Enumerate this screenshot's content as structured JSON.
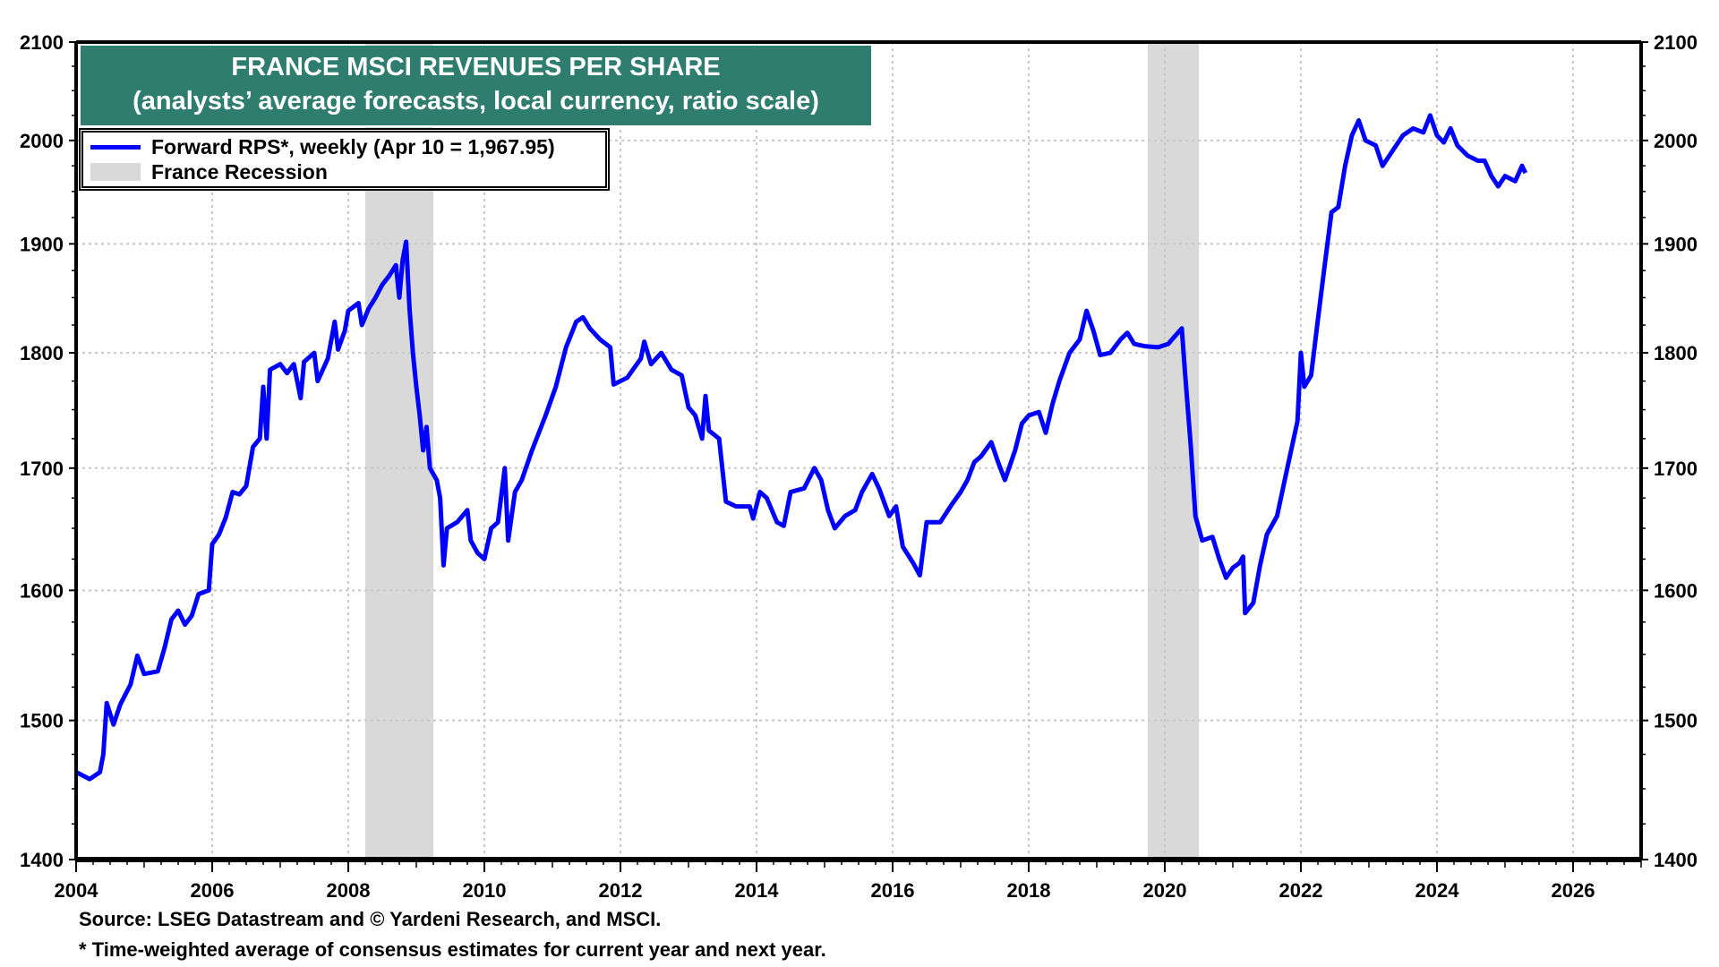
{
  "chart_data": {
    "type": "line",
    "title": "FRANCE MSCI REVENUES PER SHARE",
    "subtitle": "(analysts’ average forecasts, local currency, ratio scale)",
    "xlabel": "",
    "ylabel": "",
    "y_scale": "log",
    "ylim": [
      1400,
      2100
    ],
    "xlim": [
      2004,
      2027
    ],
    "y_ticks": [
      1400,
      1500,
      1600,
      1700,
      1800,
      1900,
      2000,
      2100
    ],
    "y_tick_labels": [
      "1400",
      "1500",
      "1600",
      "1700",
      "1800",
      "1900",
      "2000",
      "2100"
    ],
    "x_ticks": [
      2004,
      2006,
      2008,
      2010,
      2012,
      2014,
      2016,
      2018,
      2020,
      2022,
      2024,
      2026
    ],
    "x_tick_labels": [
      "2004",
      "2006",
      "2008",
      "2010",
      "2012",
      "2014",
      "2016",
      "2018",
      "2020",
      "2022",
      "2024",
      "2026"
    ],
    "grid": true,
    "legend_position": "top-left",
    "legend": [
      {
        "label": "Forward RPS*, weekly (Apr 10 = 1,967.95)",
        "kind": "line",
        "color": "#0000ff"
      },
      {
        "label": "France Recession",
        "kind": "shade",
        "color": "#d9d9d9"
      }
    ],
    "recessions": [
      {
        "start": 2008.25,
        "end": 2009.25
      },
      {
        "start": 2019.75,
        "end": 2020.5
      }
    ],
    "series": [
      {
        "name": "Forward RPS*, weekly",
        "color": "#0000ff",
        "last_value": 1967.95,
        "points": [
          [
            2004.0,
            1462
          ],
          [
            2004.2,
            1457
          ],
          [
            2004.35,
            1462
          ],
          [
            2004.4,
            1475
          ],
          [
            2004.45,
            1513
          ],
          [
            2004.55,
            1497
          ],
          [
            2004.65,
            1512
          ],
          [
            2004.8,
            1527
          ],
          [
            2004.9,
            1549
          ],
          [
            2005.0,
            1535
          ],
          [
            2005.2,
            1537
          ],
          [
            2005.3,
            1555
          ],
          [
            2005.4,
            1577
          ],
          [
            2005.5,
            1584
          ],
          [
            2005.6,
            1573
          ],
          [
            2005.7,
            1580
          ],
          [
            2005.8,
            1597
          ],
          [
            2005.95,
            1600
          ],
          [
            2006.0,
            1637
          ],
          [
            2006.1,
            1645
          ],
          [
            2006.2,
            1659
          ],
          [
            2006.3,
            1680
          ],
          [
            2006.4,
            1678
          ],
          [
            2006.5,
            1685
          ],
          [
            2006.6,
            1718
          ],
          [
            2006.7,
            1725
          ],
          [
            2006.75,
            1770
          ],
          [
            2006.8,
            1725
          ],
          [
            2006.85,
            1785
          ],
          [
            2007.0,
            1790
          ],
          [
            2007.1,
            1782
          ],
          [
            2007.2,
            1790
          ],
          [
            2007.3,
            1760
          ],
          [
            2007.35,
            1792
          ],
          [
            2007.5,
            1800
          ],
          [
            2007.55,
            1775
          ],
          [
            2007.7,
            1795
          ],
          [
            2007.8,
            1828
          ],
          [
            2007.85,
            1803
          ],
          [
            2007.95,
            1820
          ],
          [
            2008.0,
            1838
          ],
          [
            2008.15,
            1845
          ],
          [
            2008.2,
            1825
          ],
          [
            2008.3,
            1840
          ],
          [
            2008.4,
            1850
          ],
          [
            2008.5,
            1862
          ],
          [
            2008.6,
            1870
          ],
          [
            2008.7,
            1880
          ],
          [
            2008.75,
            1850
          ],
          [
            2008.8,
            1885
          ],
          [
            2008.85,
            1902
          ],
          [
            2008.9,
            1840
          ],
          [
            2008.95,
            1800
          ],
          [
            2009.0,
            1770
          ],
          [
            2009.05,
            1745
          ],
          [
            2009.1,
            1715
          ],
          [
            2009.15,
            1735
          ],
          [
            2009.2,
            1700
          ],
          [
            2009.3,
            1690
          ],
          [
            2009.35,
            1675
          ],
          [
            2009.4,
            1620
          ],
          [
            2009.45,
            1650
          ],
          [
            2009.6,
            1655
          ],
          [
            2009.75,
            1665
          ],
          [
            2009.8,
            1640
          ],
          [
            2009.9,
            1630
          ],
          [
            2010.0,
            1625
          ],
          [
            2010.1,
            1650
          ],
          [
            2010.2,
            1655
          ],
          [
            2010.3,
            1700
          ],
          [
            2010.35,
            1640
          ],
          [
            2010.45,
            1680
          ],
          [
            2010.55,
            1690
          ],
          [
            2010.7,
            1715
          ],
          [
            2010.9,
            1745
          ],
          [
            2011.05,
            1770
          ],
          [
            2011.2,
            1805
          ],
          [
            2011.35,
            1828
          ],
          [
            2011.45,
            1832
          ],
          [
            2011.55,
            1822
          ],
          [
            2011.7,
            1812
          ],
          [
            2011.85,
            1805
          ],
          [
            2011.9,
            1772
          ],
          [
            2012.1,
            1778
          ],
          [
            2012.3,
            1795
          ],
          [
            2012.35,
            1810
          ],
          [
            2012.45,
            1790
          ],
          [
            2012.6,
            1800
          ],
          [
            2012.75,
            1785
          ],
          [
            2012.9,
            1780
          ],
          [
            2013.0,
            1752
          ],
          [
            2013.1,
            1745
          ],
          [
            2013.2,
            1725
          ],
          [
            2013.25,
            1762
          ],
          [
            2013.3,
            1732
          ],
          [
            2013.45,
            1725
          ],
          [
            2013.55,
            1672
          ],
          [
            2013.7,
            1668
          ],
          [
            2013.9,
            1668
          ],
          [
            2013.95,
            1658
          ],
          [
            2014.05,
            1680
          ],
          [
            2014.15,
            1675
          ],
          [
            2014.3,
            1655
          ],
          [
            2014.4,
            1652
          ],
          [
            2014.5,
            1680
          ],
          [
            2014.7,
            1683
          ],
          [
            2014.85,
            1700
          ],
          [
            2014.95,
            1690
          ],
          [
            2015.05,
            1665
          ],
          [
            2015.15,
            1650
          ],
          [
            2015.3,
            1660
          ],
          [
            2015.45,
            1665
          ],
          [
            2015.55,
            1680
          ],
          [
            2015.7,
            1695
          ],
          [
            2015.8,
            1683
          ],
          [
            2015.95,
            1660
          ],
          [
            2016.05,
            1668
          ],
          [
            2016.15,
            1635
          ],
          [
            2016.3,
            1622
          ],
          [
            2016.4,
            1612
          ],
          [
            2016.5,
            1655
          ],
          [
            2016.7,
            1655
          ],
          [
            2016.85,
            1668
          ],
          [
            2017.0,
            1680
          ],
          [
            2017.1,
            1690
          ],
          [
            2017.2,
            1705
          ],
          [
            2017.3,
            1710
          ],
          [
            2017.45,
            1722
          ],
          [
            2017.55,
            1705
          ],
          [
            2017.65,
            1690
          ],
          [
            2017.8,
            1715
          ],
          [
            2017.9,
            1738
          ],
          [
            2018.0,
            1745
          ],
          [
            2018.15,
            1748
          ],
          [
            2018.25,
            1730
          ],
          [
            2018.35,
            1755
          ],
          [
            2018.45,
            1775
          ],
          [
            2018.6,
            1800
          ],
          [
            2018.75,
            1812
          ],
          [
            2018.85,
            1838
          ],
          [
            2018.95,
            1820
          ],
          [
            2019.05,
            1798
          ],
          [
            2019.2,
            1800
          ],
          [
            2019.35,
            1812
          ],
          [
            2019.45,
            1818
          ],
          [
            2019.55,
            1808
          ],
          [
            2019.7,
            1806
          ],
          [
            2019.9,
            1805
          ],
          [
            2020.05,
            1808
          ],
          [
            2020.15,
            1815
          ],
          [
            2020.25,
            1822
          ],
          [
            2020.3,
            1780
          ],
          [
            2020.38,
            1720
          ],
          [
            2020.45,
            1660
          ],
          [
            2020.55,
            1640
          ],
          [
            2020.7,
            1643
          ],
          [
            2020.8,
            1625
          ],
          [
            2020.9,
            1610
          ],
          [
            2021.0,
            1618
          ],
          [
            2021.1,
            1622
          ],
          [
            2021.15,
            1627
          ],
          [
            2021.18,
            1582
          ],
          [
            2021.3,
            1590
          ],
          [
            2021.4,
            1620
          ],
          [
            2021.5,
            1645
          ],
          [
            2021.65,
            1660
          ],
          [
            2021.8,
            1700
          ],
          [
            2021.95,
            1740
          ],
          [
            2022.0,
            1800
          ],
          [
            2022.05,
            1770
          ],
          [
            2022.15,
            1780
          ],
          [
            2022.25,
            1830
          ],
          [
            2022.35,
            1880
          ],
          [
            2022.45,
            1930
          ],
          [
            2022.55,
            1935
          ],
          [
            2022.65,
            1975
          ],
          [
            2022.75,
            2005
          ],
          [
            2022.85,
            2020
          ],
          [
            2022.95,
            2000
          ],
          [
            2023.1,
            1995
          ],
          [
            2023.2,
            1975
          ],
          [
            2023.35,
            1990
          ],
          [
            2023.5,
            2005
          ],
          [
            2023.65,
            2012
          ],
          [
            2023.8,
            2008
          ],
          [
            2023.9,
            2025
          ],
          [
            2024.0,
            2005
          ],
          [
            2024.1,
            1998
          ],
          [
            2024.2,
            2012
          ],
          [
            2024.3,
            1995
          ],
          [
            2024.45,
            1985
          ],
          [
            2024.6,
            1980
          ],
          [
            2024.7,
            1980
          ],
          [
            2024.8,
            1965
          ],
          [
            2024.9,
            1955
          ],
          [
            2025.0,
            1965
          ],
          [
            2025.15,
            1960
          ],
          [
            2025.25,
            1975
          ],
          [
            2025.3,
            1968
          ]
        ]
      }
    ]
  },
  "footnotes": {
    "source": "Source: LSEG Datastream and © Yardeni Research, and MSCI.",
    "note": "* Time-weighted average of consensus estimates for current year and next year."
  },
  "colors": {
    "title_bg": "#2e7d6f",
    "line": "#0000ff",
    "recession": "#d9d9d9",
    "grid": "#c8c8c8"
  }
}
